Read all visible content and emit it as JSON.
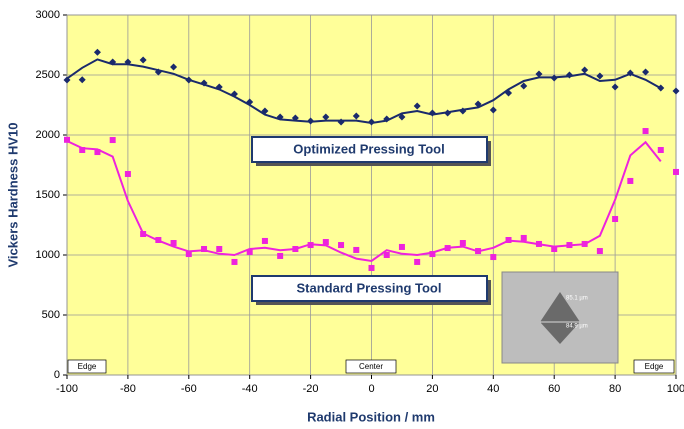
{
  "chart_data": {
    "type": "scatter",
    "y_label": "Vickers Hardness HV10",
    "x_label": "Radial Position / mm",
    "xlim": [
      -100,
      100
    ],
    "xticks": [
      -100,
      -80,
      -60,
      -40,
      -20,
      0,
      20,
      40,
      60,
      80,
      100
    ],
    "ylim": [
      0,
      3000
    ],
    "yticks": [
      0,
      500,
      1000,
      1500,
      2000,
      2500,
      3000
    ],
    "grid": true,
    "background": "#ffff99",
    "x": [
      -100,
      -95,
      -90,
      -85,
      -80,
      -75,
      -70,
      -65,
      -60,
      -55,
      -50,
      -45,
      -40,
      -35,
      -30,
      -25,
      -20,
      -15,
      -10,
      -5,
      0,
      5,
      10,
      15,
      20,
      25,
      30,
      35,
      40,
      45,
      50,
      55,
      60,
      65,
      70,
      75,
      80,
      85,
      90,
      95,
      100
    ],
    "series": [
      {
        "style": "diamond",
        "color": "#1a2a6c",
        "values": [
          2458,
          2460,
          2690,
          2608,
          2608,
          2625,
          2525,
          2567,
          2458,
          2433,
          2400,
          2342,
          2275,
          2200,
          2150,
          2142,
          2117,
          2150,
          2108,
          2158,
          2108,
          2133,
          2150,
          2242,
          2183,
          2183,
          2200,
          2258,
          2208,
          2350,
          2408,
          2508,
          2475,
          2500,
          2542,
          2492,
          2400,
          2517,
          2525,
          2392,
          2367
        ]
      },
      {
        "style": "line",
        "color": "#1a2a6c",
        "values": [
          2470,
          2560,
          2630,
          2590,
          2590,
          2570,
          2540,
          2510,
          2460,
          2420,
          2380,
          2320,
          2250,
          2170,
          2130,
          2120,
          2110,
          2120,
          2120,
          2120,
          2100,
          2120,
          2180,
          2200,
          2170,
          2190,
          2210,
          2230,
          2290,
          2380,
          2450,
          2480,
          2480,
          2490,
          2510,
          2450,
          2460,
          2510,
          2460,
          2390,
          null
        ]
      },
      {
        "style": "square",
        "color": "#ee22dd",
        "values": [
          1960,
          1875,
          1858,
          1958,
          1675,
          1175,
          1125,
          1100,
          1008,
          1050,
          1050,
          942,
          1025,
          1117,
          992,
          1050,
          1083,
          1108,
          1083,
          1042,
          892,
          1000,
          1067,
          942,
          1008,
          1058,
          1100,
          1033,
          983,
          1125,
          1142,
          1092,
          1050,
          1083,
          1092,
          1033,
          1300,
          1617,
          2033,
          1875,
          1692
        ]
      },
      {
        "style": "line",
        "color": "#ee22dd",
        "values": [
          1950,
          1890,
          1880,
          1820,
          1450,
          1180,
          1120,
          1070,
          1030,
          1040,
          1010,
          1000,
          1050,
          1060,
          1040,
          1050,
          1090,
          1080,
          1020,
          970,
          950,
          1040,
          1010,
          1000,
          1020,
          1060,
          1070,
          1030,
          1060,
          1120,
          1110,
          1090,
          1070,
          1080,
          1090,
          1160,
          1460,
          1830,
          1940,
          1780,
          null
        ]
      }
    ],
    "annotations": [
      "Optimized Pressing Tool",
      "Standard Pressing Tool",
      "Edge",
      "Center",
      "Edge",
      "85.1 µm",
      "84.9 µm"
    ]
  }
}
